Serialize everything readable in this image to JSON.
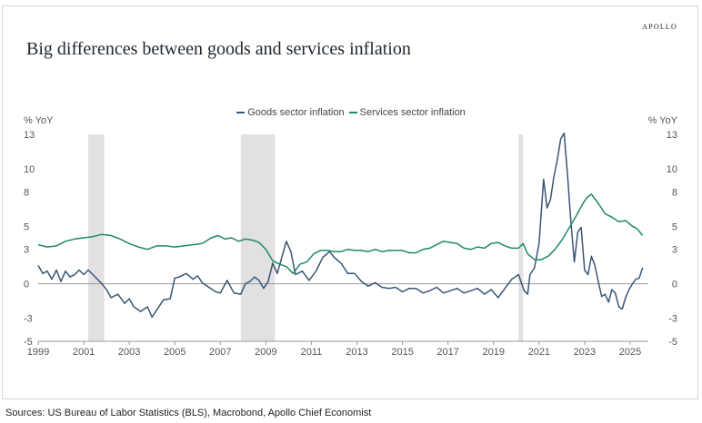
{
  "brand": "APOLLO",
  "source": "Sources: US Bureau of Labor Statistics (BLS), Macrobond, Apollo Chief Economist",
  "colors": {
    "goods": "#3a5675",
    "services": "#1e8a63",
    "recession": "#e1e1e1",
    "zero_line": "#9a9a9a"
  },
  "chart_data": {
    "type": "line",
    "title": "Big differences between goods and services inflation",
    "ylabel_left": "% YoY",
    "ylabel_right": "% YoY",
    "xlim": [
      1999,
      2025.8
    ],
    "ylim": [
      -5,
      13
    ],
    "yticks": [
      13,
      10,
      8,
      5,
      3,
      0,
      -3,
      -5
    ],
    "xticks": [
      1999,
      2001,
      2003,
      2005,
      2007,
      2009,
      2011,
      2013,
      2015,
      2017,
      2019,
      2021,
      2023,
      2025
    ],
    "legend_position": "top-center",
    "grid": false,
    "recessions": [
      [
        2001.2,
        2001.9
      ],
      [
        2007.9,
        2009.4
      ],
      [
        2020.1,
        2020.3
      ]
    ],
    "series": [
      {
        "name": "Goods sector inflation",
        "x": [
          1999.0,
          1999.2,
          1999.4,
          1999.6,
          1999.8,
          2000.0,
          2000.2,
          2000.4,
          2000.6,
          2000.8,
          2001.0,
          2001.2,
          2001.4,
          2001.6,
          2001.8,
          2002.0,
          2002.2,
          2002.5,
          2002.8,
          2003.0,
          2003.2,
          2003.5,
          2003.8,
          2004.0,
          2004.2,
          2004.5,
          2004.8,
          2005.0,
          2005.2,
          2005.5,
          2005.8,
          2006.0,
          2006.2,
          2006.5,
          2006.8,
          2007.0,
          2007.3,
          2007.6,
          2007.9,
          2008.1,
          2008.3,
          2008.5,
          2008.7,
          2008.9,
          2009.1,
          2009.3,
          2009.5,
          2009.7,
          2009.9,
          2010.1,
          2010.3,
          2010.6,
          2010.9,
          2011.2,
          2011.5,
          2011.8,
          2012.0,
          2012.3,
          2012.6,
          2012.9,
          2013.2,
          2013.5,
          2013.8,
          2014.1,
          2014.4,
          2014.7,
          2015.0,
          2015.3,
          2015.6,
          2015.9,
          2016.2,
          2016.5,
          2016.8,
          2017.1,
          2017.4,
          2017.7,
          2018.0,
          2018.3,
          2018.6,
          2018.9,
          2019.2,
          2019.5,
          2019.8,
          2020.1,
          2020.2,
          2020.35,
          2020.5,
          2020.6,
          2020.8,
          2021.0,
          2021.2,
          2021.35,
          2021.5,
          2021.65,
          2021.8,
          2021.95,
          2022.1,
          2022.25,
          2022.4,
          2022.55,
          2022.7,
          2022.85,
          2023.0,
          2023.15,
          2023.3,
          2023.45,
          2023.6,
          2023.75,
          2023.9,
          2024.05,
          2024.2,
          2024.35,
          2024.5,
          2024.65,
          2024.8,
          2024.95,
          2025.1,
          2025.25,
          2025.4,
          2025.55
        ],
        "values": [
          1.6,
          0.9,
          1.1,
          0.4,
          1.2,
          0.2,
          1.1,
          0.6,
          0.8,
          1.2,
          0.8,
          1.2,
          0.8,
          0.4,
          0.0,
          -0.5,
          -1.2,
          -0.9,
          -1.7,
          -1.3,
          -2.0,
          -2.4,
          -2.0,
          -2.9,
          -2.3,
          -1.4,
          -1.3,
          0.5,
          0.6,
          0.9,
          0.4,
          0.7,
          0.1,
          -0.3,
          -0.7,
          -0.8,
          0.3,
          -0.8,
          -0.9,
          0.0,
          0.2,
          0.6,
          0.3,
          -0.4,
          0.2,
          1.8,
          0.9,
          2.3,
          3.7,
          2.8,
          0.8,
          1.1,
          0.3,
          1.1,
          2.3,
          2.8,
          2.3,
          1.8,
          0.9,
          0.9,
          0.2,
          -0.2,
          0.1,
          -0.3,
          -0.4,
          -0.3,
          -0.7,
          -0.4,
          -0.4,
          -0.8,
          -0.6,
          -0.3,
          -0.8,
          -0.6,
          -0.4,
          -0.8,
          -0.6,
          -0.4,
          -0.9,
          -0.5,
          -1.2,
          -0.4,
          0.4,
          0.8,
          0.2,
          -0.6,
          -0.9,
          0.8,
          1.4,
          3.5,
          9.1,
          6.6,
          7.3,
          9.3,
          10.8,
          12.6,
          13.1,
          9.5,
          5.3,
          1.9,
          4.5,
          4.9,
          1.2,
          0.8,
          2.4,
          1.6,
          0.2,
          -1.1,
          -0.9,
          -1.6,
          -0.5,
          -0.8,
          -2.0,
          -2.2,
          -1.2,
          -0.5,
          0.0,
          0.4,
          0.5,
          1.4
        ],
        "color": "#3a5675"
      },
      {
        "name": "Services sector inflation",
        "x": [
          1999.0,
          1999.4,
          1999.8,
          2000.2,
          2000.6,
          2001.0,
          2001.4,
          2001.8,
          2002.2,
          2002.6,
          2003.0,
          2003.4,
          2003.8,
          2004.2,
          2004.6,
          2005.0,
          2005.4,
          2005.8,
          2006.2,
          2006.6,
          2006.9,
          2007.2,
          2007.5,
          2007.8,
          2008.1,
          2008.4,
          2008.7,
          2009.0,
          2009.3,
          2009.6,
          2009.9,
          2010.2,
          2010.5,
          2010.8,
          2011.1,
          2011.4,
          2011.7,
          2012.0,
          2012.3,
          2012.6,
          2012.9,
          2013.2,
          2013.5,
          2013.8,
          2014.1,
          2014.4,
          2014.7,
          2015.0,
          2015.3,
          2015.6,
          2015.9,
          2016.2,
          2016.5,
          2016.8,
          2017.1,
          2017.4,
          2017.7,
          2018.0,
          2018.3,
          2018.6,
          2018.9,
          2019.2,
          2019.5,
          2019.8,
          2020.1,
          2020.3,
          2020.5,
          2020.8,
          2021.1,
          2021.4,
          2021.7,
          2022.0,
          2022.3,
          2022.6,
          2022.9,
          2023.1,
          2023.3,
          2023.6,
          2023.9,
          2024.2,
          2024.5,
          2024.8,
          2025.1,
          2025.3,
          2025.55
        ],
        "values": [
          3.4,
          3.2,
          3.3,
          3.7,
          3.9,
          4.0,
          4.1,
          4.3,
          4.2,
          3.9,
          3.5,
          3.2,
          3.0,
          3.3,
          3.3,
          3.2,
          3.3,
          3.4,
          3.5,
          4.0,
          4.2,
          3.9,
          4.0,
          3.7,
          3.9,
          3.8,
          3.6,
          3.0,
          2.0,
          1.7,
          1.5,
          0.9,
          1.7,
          1.9,
          2.6,
          2.9,
          2.9,
          2.8,
          2.8,
          3.0,
          2.9,
          2.9,
          2.8,
          3.0,
          2.8,
          2.9,
          2.9,
          2.9,
          2.7,
          2.7,
          3.0,
          3.1,
          3.4,
          3.7,
          3.6,
          3.5,
          3.1,
          3.0,
          3.2,
          3.1,
          3.5,
          3.6,
          3.3,
          3.1,
          3.1,
          3.5,
          2.6,
          2.1,
          2.1,
          2.4,
          3.0,
          3.8,
          4.8,
          5.8,
          6.9,
          7.5,
          7.8,
          7.0,
          6.1,
          5.8,
          5.4,
          5.5,
          5.0,
          4.8,
          4.2
        ],
        "color": "#1e8a63"
      }
    ]
  }
}
